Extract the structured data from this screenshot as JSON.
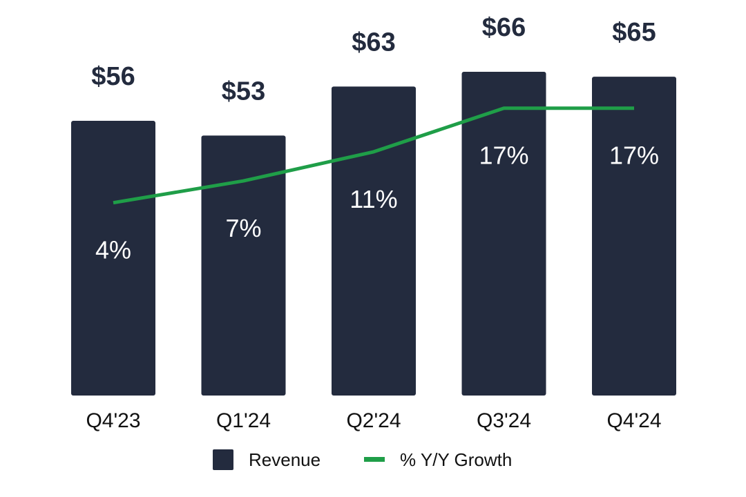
{
  "chart_data": {
    "type": "bar",
    "title": "",
    "xlabel": "",
    "ylabel": "",
    "categories": [
      "Q4'23",
      "Q1'24",
      "Q2'24",
      "Q3'24",
      "Q4'24"
    ],
    "series": [
      {
        "name": "Revenue",
        "type": "bar",
        "values": [
          56,
          53,
          63,
          66,
          65
        ],
        "labels": [
          "$56",
          "$53",
          "$63",
          "$66",
          "$65"
        ],
        "color": "#232b3e"
      },
      {
        "name": "% Y/Y Growth",
        "type": "line",
        "values": [
          4,
          7,
          11,
          17,
          17
        ],
        "labels": [
          "4%",
          "7%",
          "11%",
          "17%",
          "17%"
        ],
        "color": "#1f9e48"
      }
    ],
    "ylim": [
      0,
      66
    ],
    "growth_ylim": [
      -22.5,
      22
    ],
    "grid": false,
    "legend": {
      "position": "bottom-center",
      "entries": [
        "Revenue",
        "% Y/Y Growth"
      ]
    }
  },
  "colors": {
    "bar": "#232b3e",
    "line": "#1f9e48",
    "value_text": "#232b3e",
    "growth_text": "#ffffff",
    "tick_text": "#111111"
  }
}
